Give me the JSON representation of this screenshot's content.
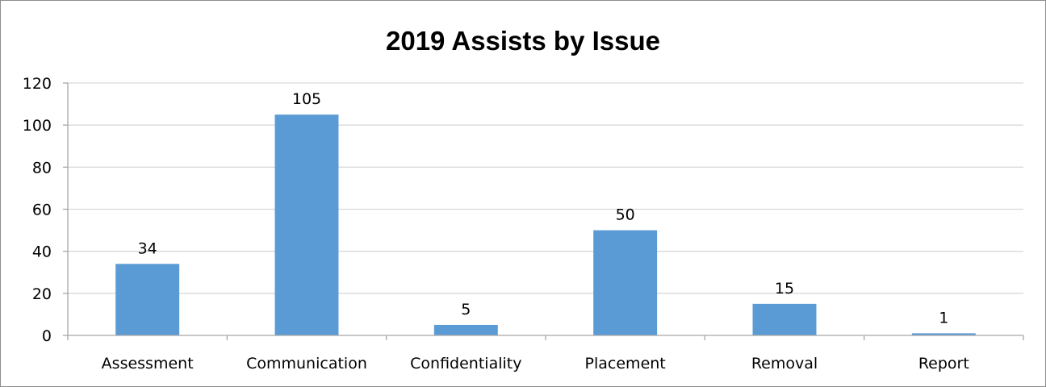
{
  "chart_data": {
    "type": "bar",
    "title": "2019 Assists by Issue",
    "categories": [
      "Assessment",
      "Communication",
      "Confidentiality",
      "Placement",
      "Removal",
      "Report"
    ],
    "values": [
      34,
      105,
      5,
      50,
      15,
      1
    ],
    "data_labels": [
      "34",
      "105",
      "5",
      "50",
      "15",
      "1"
    ],
    "y_ticks": [
      "0",
      "20",
      "40",
      "60",
      "80",
      "100",
      "120"
    ],
    "xlabel": "",
    "ylabel": "",
    "ylim": [
      0,
      120
    ],
    "grid": true,
    "legend": "none",
    "colors": {
      "bar": "#5b9bd5",
      "grid": "#d9d9d9",
      "axis": "#a6a6a6"
    }
  }
}
